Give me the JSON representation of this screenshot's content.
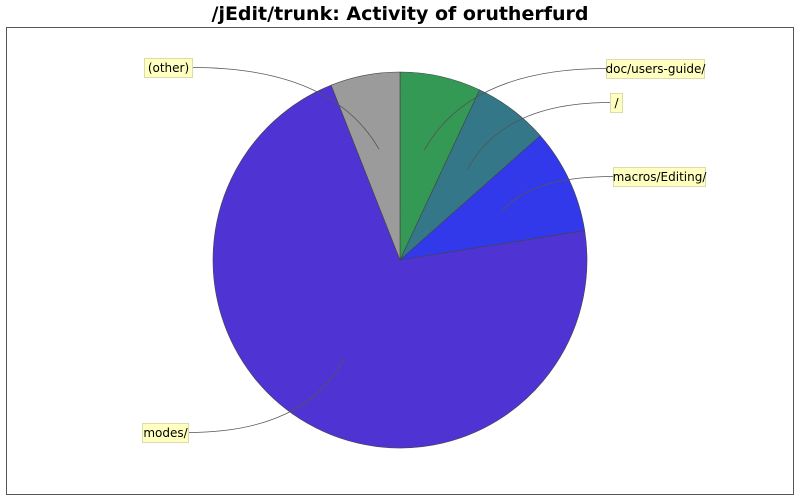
{
  "chart_data": {
    "type": "pie",
    "title": "/jEdit/trunk: Activity of orutherfurd",
    "slices": [
      {
        "label": "doc/users-guide/",
        "value": 7.0,
        "color": "#339955"
      },
      {
        "label": "/",
        "value": 6.5,
        "color": "#337788"
      },
      {
        "label": "macros/Editing/",
        "value": 9.0,
        "color": "#3239ea"
      },
      {
        "label": "modes/",
        "value": 71.5,
        "color": "#5033d3"
      },
      {
        "label": "(other)",
        "value": 6.0,
        "color": "#9b9b9b"
      }
    ],
    "start_angle": "12 o'clock",
    "direction": "clockwise",
    "legend": "none"
  }
}
